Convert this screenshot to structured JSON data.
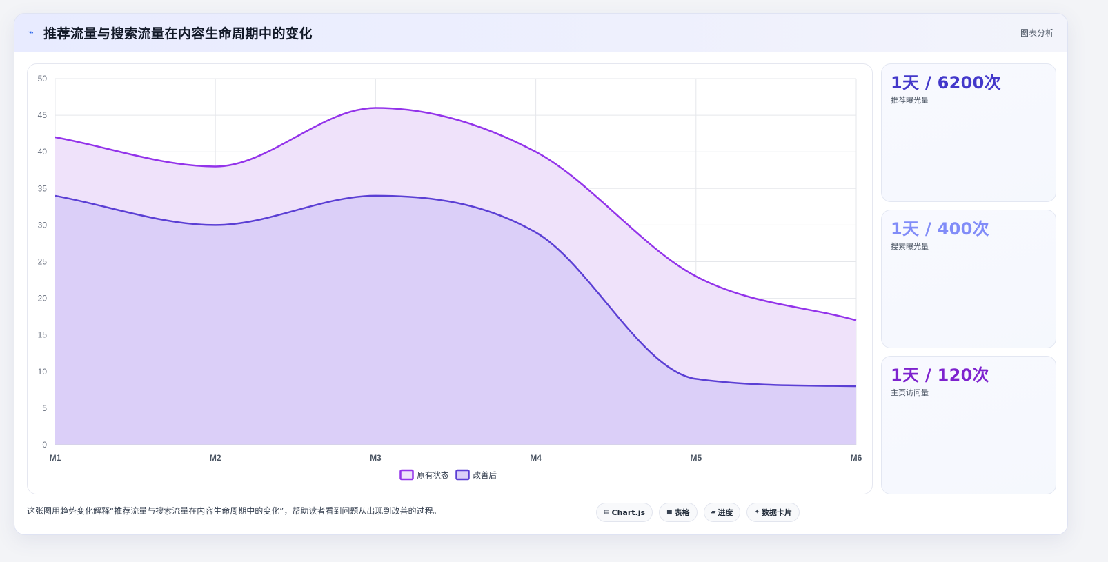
{
  "header": {
    "icon": "bolt-icon",
    "title": "推荐流量与搜索流量在内容生命周期中的变化",
    "tag": "图表分析"
  },
  "chart_data": {
    "type": "area",
    "categories": [
      "M1",
      "M2",
      "M3",
      "M4",
      "M5",
      "M6"
    ],
    "series": [
      {
        "name": "原有状态",
        "values": [
          42,
          38,
          46,
          40,
          23,
          17
        ],
        "color": "#9333ea",
        "fill": "#efe2fa"
      },
      {
        "name": "改善后",
        "values": [
          34,
          30,
          34,
          29,
          9,
          8
        ],
        "color": "#5b3fd4",
        "fill": "#dbcff8"
      }
    ],
    "ylim": [
      0,
      50
    ],
    "yticks": [
      0,
      5,
      10,
      15,
      20,
      25,
      30,
      35,
      40,
      45,
      50
    ],
    "grid": true,
    "legend": "bottom-center",
    "smooth": true
  },
  "stats": [
    {
      "value": "1天 / 6200次",
      "label": "推荐曝光量",
      "color": "#4338ca"
    },
    {
      "value": "1天 / 400次",
      "label": "搜索曝光量",
      "color": "#818cf8"
    },
    {
      "value": "1天 / 120次",
      "label": "主页访问量",
      "color": "#7e22ce"
    }
  ],
  "footer": {
    "note": "这张图用趋势变化解释“推荐流量与搜索流量在内容生命周期中的变化”，帮助读者看到问题从出现到改善的过程。",
    "chips": [
      {
        "icon": "chart-icon",
        "glyph": "▤",
        "label": "Chart.js"
      },
      {
        "icon": "table-icon",
        "glyph": "■",
        "label": "表格"
      },
      {
        "icon": "progress-icon",
        "glyph": "▰",
        "label": "进度"
      },
      {
        "icon": "sparkle-icon",
        "glyph": "✦",
        "label": "数据卡片"
      }
    ]
  }
}
